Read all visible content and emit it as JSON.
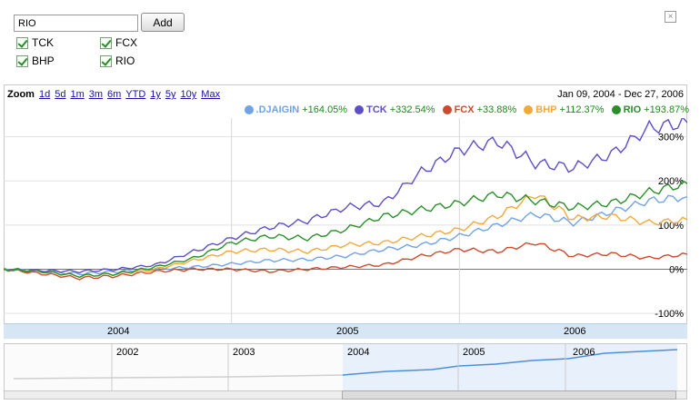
{
  "controls": {
    "symbol_input_value": "RIO",
    "add_label": "Add",
    "close_glyph": "×",
    "checkboxes": [
      {
        "label": "TCK",
        "checked": true
      },
      {
        "label": "FCX",
        "checked": true
      },
      {
        "label": "BHP",
        "checked": true
      },
      {
        "label": "RIO",
        "checked": true
      }
    ]
  },
  "zoom": {
    "label": "Zoom",
    "options": [
      "1d",
      "5d",
      "1m",
      "3m",
      "6m",
      "YTD",
      "1y",
      "5y",
      "10y",
      "Max"
    ]
  },
  "date_range": "Jan 09, 2004 - Dec 27, 2006",
  "legend": [
    {
      "name": ".DJAIGIN",
      "change": "+164.05%",
      "color": "#6fa3e6"
    },
    {
      "name": "TCK",
      "change": "+332.54%",
      "color": "#5c4ec9"
    },
    {
      "name": "FCX",
      "change": "+33.88%",
      "color": "#cc4a2e"
    },
    {
      "name": "BHP",
      "change": "+112.37%",
      "color": "#f3a93a"
    },
    {
      "name": "RIO",
      "change": "+193.87%",
      "color": "#2a8f2a"
    }
  ],
  "overview": {
    "years": [
      "2002",
      "2003",
      "2004",
      "2005",
      "2006"
    ]
  },
  "chart_data": {
    "type": "line",
    "x": [
      "2004-01",
      "2004-03",
      "2004-05",
      "2004-07",
      "2004-09",
      "2004-11",
      "2005-01",
      "2005-03",
      "2005-05",
      "2005-07",
      "2005-09",
      "2005-11",
      "2006-01",
      "2006-03",
      "2006-05",
      "2006-07",
      "2006-09",
      "2006-11",
      "2006-12"
    ],
    "y_tick_labels": [
      "-100%",
      "0%",
      "100%",
      "200%",
      "300%"
    ],
    "x_tick_labels": [
      "2004",
      "2005",
      "2006"
    ],
    "ylim": [
      -110,
      330
    ],
    "series": [
      {
        "name": ".DJAIGIN",
        "values": [
          0,
          -5,
          -10,
          -5,
          0,
          5,
          12,
          20,
          22,
          30,
          45,
          55,
          75,
          100,
          125,
          105,
          130,
          155,
          164
        ]
      },
      {
        "name": "TCK",
        "values": [
          0,
          -3,
          -5,
          0,
          10,
          40,
          70,
          95,
          110,
          140,
          150,
          220,
          270,
          290,
          240,
          230,
          260,
          320,
          332
        ]
      },
      {
        "name": "FCX",
        "values": [
          0,
          -10,
          -20,
          -15,
          -5,
          0,
          0,
          -5,
          0,
          5,
          10,
          30,
          45,
          40,
          60,
          30,
          35,
          25,
          34
        ]
      },
      {
        "name": "BHP",
        "values": [
          0,
          -5,
          -15,
          -10,
          0,
          20,
          40,
          45,
          40,
          55,
          60,
          75,
          90,
          120,
          170,
          115,
          120,
          105,
          112
        ]
      },
      {
        "name": "RIO",
        "values": [
          0,
          -5,
          -15,
          -10,
          5,
          25,
          60,
          75,
          70,
          90,
          120,
          135,
          150,
          170,
          155,
          140,
          150,
          175,
          194
        ]
      }
    ],
    "grid": true
  }
}
